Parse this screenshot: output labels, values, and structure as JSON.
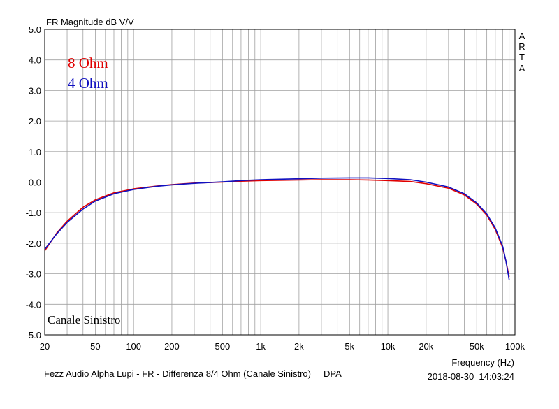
{
  "colors": {
    "background": "#ffffff",
    "grid": "#a0a0a0",
    "frame": "#000000",
    "series_8ohm": "#e00000",
    "series_4ohm": "#1010c0"
  },
  "chart_data": {
    "type": "line",
    "title": "FR Magnitude dB V/V",
    "xlabel": "Frequency (Hz)",
    "ylabel": "",
    "x_scale": "log",
    "xlim": [
      20,
      100000
    ],
    "ylim": [
      -5.0,
      5.0
    ],
    "grid": true,
    "legend_position": "top-left",
    "x_ticks": [
      "20",
      "50",
      "100",
      "200",
      "500",
      "1k",
      "2k",
      "5k",
      "10k",
      "20k",
      "50k",
      "100k"
    ],
    "y_ticks": [
      "5.0",
      "4.0",
      "3.0",
      "2.0",
      "1.0",
      "0.0",
      "-1.0",
      "-2.0",
      "-3.0",
      "-4.0",
      "-5.0"
    ],
    "series": [
      {
        "name": "8 Ohm",
        "color": "#e00000",
        "x": [
          20,
          25,
          30,
          40,
          50,
          70,
          100,
          150,
          200,
          300,
          500,
          700,
          1000,
          2000,
          3000,
          5000,
          7000,
          10000,
          15000,
          20000,
          30000,
          40000,
          50000,
          60000,
          70000,
          80000,
          85000,
          90000
        ],
        "y": [
          -2.25,
          -1.65,
          -1.28,
          -0.82,
          -0.58,
          -0.35,
          -0.22,
          -0.13,
          -0.08,
          -0.03,
          0.0,
          0.03,
          0.05,
          0.07,
          0.08,
          0.08,
          0.07,
          0.05,
          0.02,
          -0.05,
          -0.2,
          -0.42,
          -0.72,
          -1.08,
          -1.55,
          -2.15,
          -2.6,
          -3.1
        ]
      },
      {
        "name": "4 Ohm",
        "color": "#1010c0",
        "x": [
          20,
          25,
          30,
          40,
          50,
          70,
          100,
          150,
          200,
          300,
          500,
          700,
          1000,
          2000,
          3000,
          5000,
          7000,
          10000,
          15000,
          20000,
          30000,
          40000,
          50000,
          60000,
          70000,
          80000,
          85000,
          90000
        ],
        "y": [
          -2.2,
          -1.68,
          -1.32,
          -0.88,
          -0.62,
          -0.38,
          -0.24,
          -0.14,
          -0.09,
          -0.04,
          0.01,
          0.05,
          0.08,
          0.11,
          0.13,
          0.14,
          0.14,
          0.12,
          0.08,
          0.0,
          -0.16,
          -0.38,
          -0.68,
          -1.04,
          -1.5,
          -2.1,
          -2.6,
          -3.2
        ]
      }
    ],
    "annotations": {
      "arta": [
        "A",
        "R",
        "T",
        "A"
      ],
      "channel": "Canale Sinistro",
      "footer_left": "Fezz Audio Alpha Lupi - FR - Differenza 8/4 Ohm (Canale Sinistro)     DPA",
      "footer_right": "2018-08-30  14:03:24"
    }
  }
}
